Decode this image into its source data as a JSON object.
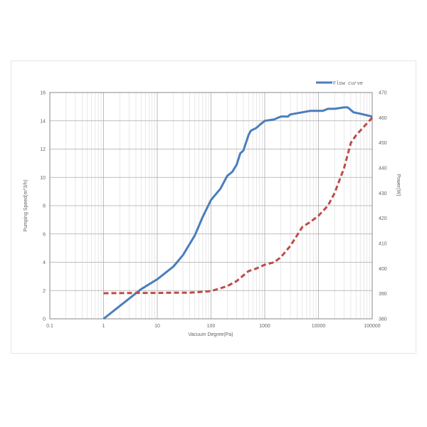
{
  "chart_data": {
    "type": "line",
    "xlabel": "Vacuum Degree(Pa)",
    "ylabel": "Pumping Speed(m^3/h)",
    "y2label": "Power(W)",
    "xscale": "log",
    "xlim": [
      0.1,
      100000
    ],
    "ylim": [
      0,
      16
    ],
    "y2lim": [
      380,
      470
    ],
    "grid": true,
    "legend_position": "top-right",
    "x_ticks": [
      "0.1",
      "1",
      "10",
      "100",
      "1000",
      "10000",
      "100000"
    ],
    "y_ticks": [
      "0",
      "2",
      "4",
      "6",
      "8",
      "10",
      "12",
      "14",
      "16"
    ],
    "y2_ticks": [
      "380",
      "390",
      "400",
      "410",
      "420",
      "430",
      "440",
      "450",
      "460",
      "470"
    ],
    "series": [
      {
        "name": "Flow curve",
        "axis": "left",
        "color": "#4a7ebb",
        "style": "solid",
        "x": [
          1,
          2,
          5,
          10,
          20,
          30,
          50,
          70,
          100,
          150,
          200,
          250,
          300,
          350,
          400,
          500,
          550,
          700,
          800,
          1000,
          1500,
          2000,
          2700,
          3000,
          5000,
          7000,
          12000,
          15000,
          20000,
          30000,
          35000,
          45000,
          60000,
          100000
        ],
        "y": [
          0,
          0.9,
          2.1,
          2.8,
          3.7,
          4.5,
          5.9,
          7.2,
          8.4,
          9.2,
          10.1,
          10.4,
          10.9,
          11.7,
          11.9,
          13.0,
          13.3,
          13.5,
          13.7,
          14.0,
          14.1,
          14.3,
          14.3,
          14.45,
          14.6,
          14.7,
          14.7,
          14.85,
          14.85,
          14.95,
          14.95,
          14.6,
          14.5,
          14.3
        ]
      },
      {
        "axis": "right",
        "color": "#be4b48",
        "style": "dashed",
        "x": [
          1,
          5,
          10,
          20,
          40,
          100,
          200,
          300,
          500,
          700,
          1000,
          1500,
          2000,
          3000,
          5000,
          7000,
          10000,
          15000,
          20000,
          30000,
          40000,
          50000,
          100000
        ],
        "y": [
          390.2,
          390.3,
          390.3,
          390.4,
          390.4,
          391,
          393,
          395,
          399,
          400,
          401.5,
          402.5,
          404.5,
          409,
          416.5,
          418.5,
          421,
          425,
          430,
          440,
          450,
          453,
          460
        ]
      }
    ]
  }
}
